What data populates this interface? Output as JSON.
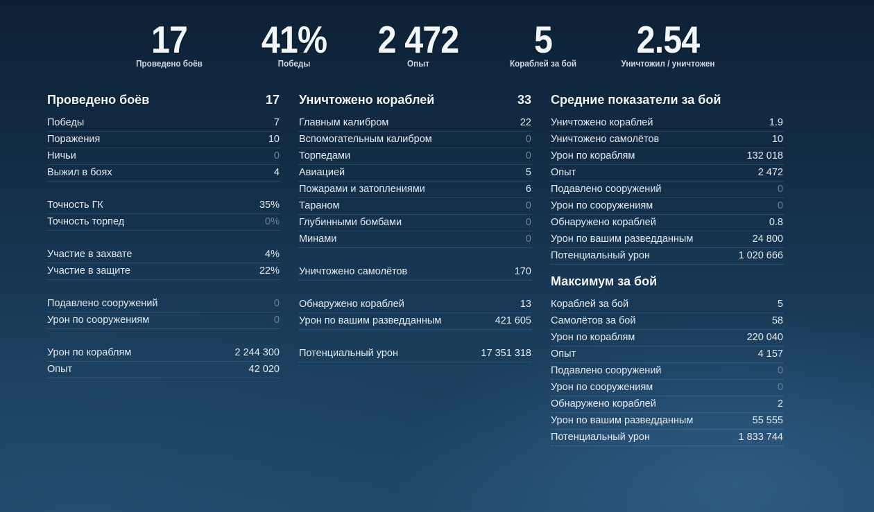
{
  "summary": [
    {
      "value": "17",
      "label": "Проведено боёв"
    },
    {
      "value": "41%",
      "label": "Победы"
    },
    {
      "value": "2 472",
      "label": "Опыт"
    },
    {
      "value": "5",
      "label": "Кораблей за бой"
    },
    {
      "value": "2.54",
      "label": "Уничтожил / уничтожен"
    }
  ],
  "col1": {
    "title": "Проведено боёв",
    "value": "17",
    "groups": [
      [
        {
          "label": "Победы",
          "value": "7"
        },
        {
          "label": "Поражения",
          "value": "10"
        },
        {
          "label": "Ничьи",
          "value": "0"
        },
        {
          "label": "Выжил в боях",
          "value": "4"
        }
      ],
      [
        {
          "label": "Точность ГК",
          "value": "35%"
        },
        {
          "label": "Точность торпед",
          "value": "0%"
        }
      ],
      [
        {
          "label": "Участие в захвате",
          "value": "4%"
        },
        {
          "label": "Участие в защите",
          "value": "22%"
        }
      ],
      [
        {
          "label": "Подавлено сооружений",
          "value": "0"
        },
        {
          "label": "Урон по сооружениям",
          "value": "0"
        }
      ],
      [
        {
          "label": "Урон по кораблям",
          "value": "2 244 300"
        },
        {
          "label": "Опыт",
          "value": "42 020"
        }
      ]
    ]
  },
  "col2": {
    "title": "Уничтожено кораблей",
    "value": "33",
    "groups": [
      [
        {
          "label": "Главным калибром",
          "value": "22"
        },
        {
          "label": "Вспомогательным калибром",
          "value": "0"
        },
        {
          "label": "Торпедами",
          "value": "0"
        },
        {
          "label": "Авиацией",
          "value": "5"
        },
        {
          "label": "Пожарами и затоплениями",
          "value": "6"
        },
        {
          "label": "Тараном",
          "value": "0"
        },
        {
          "label": "Глубинными бомбами",
          "value": "0"
        },
        {
          "label": "Минами",
          "value": "0"
        }
      ],
      [
        {
          "label": "Уничтожено самолётов",
          "value": "170"
        }
      ],
      [
        {
          "label": "Обнаружено кораблей",
          "value": "13"
        },
        {
          "label": "Урон по вашим разведданным",
          "value": "421 605"
        }
      ],
      [
        {
          "label": "Потенциальный урон",
          "value": "17 351 318"
        }
      ]
    ]
  },
  "col3": {
    "title": "Средние показатели за бой",
    "rows": [
      {
        "label": "Уничтожено кораблей",
        "value": "1.9"
      },
      {
        "label": "Уничтожено самолётов",
        "value": "10"
      },
      {
        "label": "Урон по кораблям",
        "value": "132 018"
      },
      {
        "label": "Опыт",
        "value": "2 472"
      },
      {
        "label": "Подавлено сооружений",
        "value": "0"
      },
      {
        "label": "Урон по сооружениям",
        "value": "0"
      },
      {
        "label": "Обнаружено кораблей",
        "value": "0.8"
      },
      {
        "label": "Урон по вашим разведданным",
        "value": "24 800"
      },
      {
        "label": "Потенциальный урон",
        "value": "1 020 666"
      }
    ],
    "max_title": "Максимум за бой",
    "max_rows": [
      {
        "label": "Кораблей за бой",
        "value": "5"
      },
      {
        "label": "Самолётов за бой",
        "value": "58"
      },
      {
        "label": "Урон по кораблям",
        "value": "220 040"
      },
      {
        "label": "Опыт",
        "value": "4 157"
      },
      {
        "label": "Подавлено сооружений",
        "value": "0"
      },
      {
        "label": "Урон по сооружениям",
        "value": "0"
      },
      {
        "label": "Обнаружено кораблей",
        "value": "2"
      },
      {
        "label": "Урон по вашим разведданным",
        "value": "55 555"
      },
      {
        "label": "Потенциальный урон",
        "value": "1 833 744"
      }
    ]
  },
  "colors": {
    "background_top": "#0d2135",
    "background_bottom": "#1f4766",
    "text": "#e4eaf0",
    "zero_value": "#6f8398"
  }
}
